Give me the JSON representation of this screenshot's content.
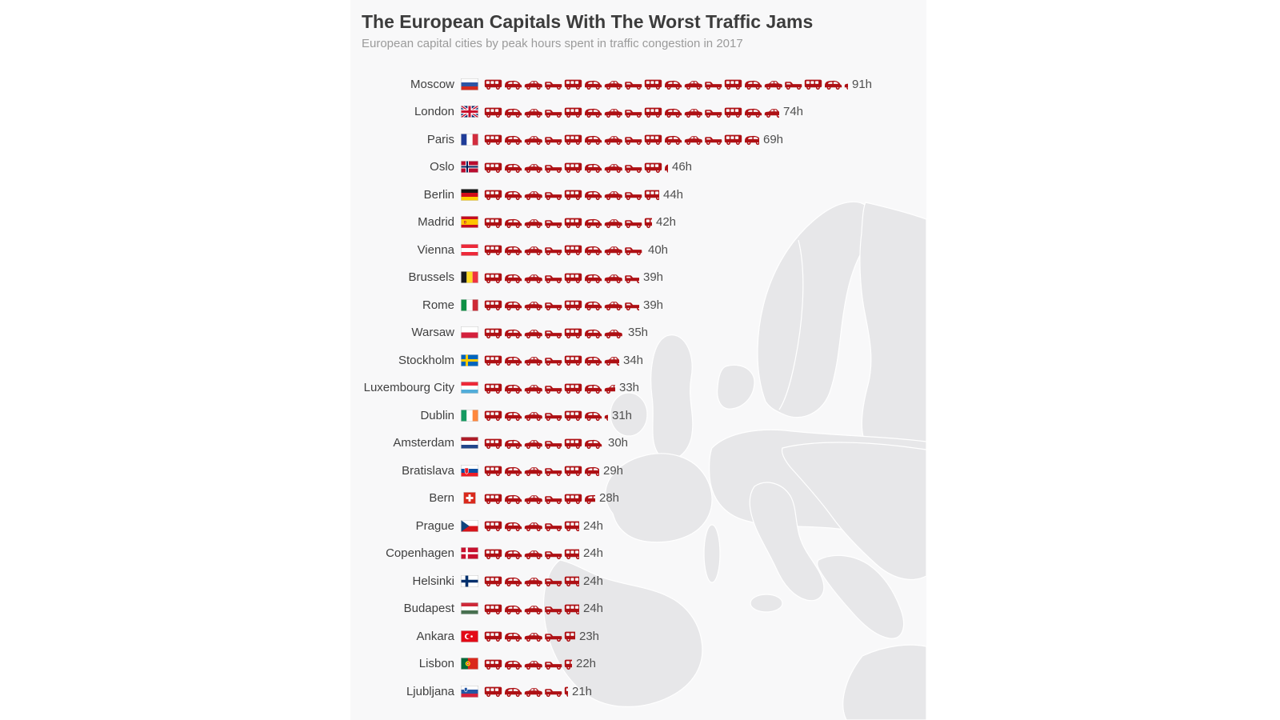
{
  "chart_data": {
    "type": "pictogram-bar",
    "title": "The European Capitals With The Worst Traffic Jams",
    "subtitle": "European capital cities by peak hours spent in traffic congestion in 2017",
    "unit_suffix": "h",
    "hours_per_icon": 5,
    "icon_color": "#ae1014",
    "icon_cycle": [
      "minibus-icon",
      "hatchback-icon",
      "sedan-icon",
      "pickup-icon"
    ],
    "legend": "none",
    "xlim": [
      0,
      95
    ],
    "categories": [
      "Moscow",
      "London",
      "Paris",
      "Oslo",
      "Berlin",
      "Madrid",
      "Vienna",
      "Brussels",
      "Rome",
      "Warsaw",
      "Stockholm",
      "Luxembourg City",
      "Dublin",
      "Amsterdam",
      "Bratislava",
      "Bern",
      "Prague",
      "Copenhagen",
      "Helsinki",
      "Budapest",
      "Ankara",
      "Lisbon",
      "Ljubljana"
    ],
    "values": [
      91,
      74,
      69,
      46,
      44,
      42,
      40,
      39,
      39,
      35,
      34,
      33,
      31,
      30,
      29,
      28,
      24,
      24,
      24,
      24,
      23,
      22,
      21
    ],
    "value_labels": [
      "91h",
      "74h",
      "69h",
      "46h",
      "44h",
      "42h",
      "40h",
      "39h",
      "39h",
      "35h",
      "34h",
      "33h",
      "31h",
      "30h",
      "29h",
      "28h",
      "24h",
      "24h",
      "24h",
      "24h",
      "23h",
      "22h",
      "21h"
    ],
    "flags": [
      "ru",
      "gb",
      "fr",
      "no",
      "de",
      "es",
      "at",
      "be",
      "it",
      "pl",
      "se",
      "lu",
      "ie",
      "nl",
      "sk",
      "ch",
      "cz",
      "dk",
      "fi",
      "hu",
      "tr",
      "pt",
      "si"
    ],
    "flag_countries": [
      "Russia",
      "United Kingdom",
      "France",
      "Norway",
      "Germany",
      "Spain",
      "Austria",
      "Belgium",
      "Italy",
      "Poland",
      "Sweden",
      "Luxembourg",
      "Ireland",
      "Netherlands",
      "Slovakia",
      "Switzerland",
      "Czech Republic",
      "Denmark",
      "Finland",
      "Hungary",
      "Turkey",
      "Portugal",
      "Slovenia"
    ],
    "background_decoration": "europe-map-silhouette"
  },
  "colors": {
    "page_background": "#ffffff",
    "panel_background": "#f8f8f9",
    "map_fill": "#e7e7e9",
    "map_border": "#ffffff",
    "title_text": "#3c3c3c",
    "subtitle_text": "#9b9b9b",
    "label_text": "#404040",
    "value_text": "#4f4f4f",
    "car_red": "#ae1014"
  }
}
